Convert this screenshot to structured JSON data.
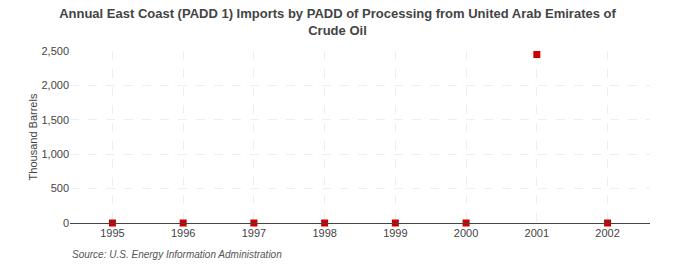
{
  "chart_data": {
    "type": "scatter",
    "title": "Annual East Coast (PADD 1) Imports by PADD of Processing from United Arab Emirates of\nCrude Oil",
    "y_label": "Thousand Barrels",
    "annotations": [
      "Source: U.S. Energy Information Administration"
    ],
    "x": [
      1995,
      1996,
      1997,
      1998,
      1999,
      2000,
      2001,
      2002
    ],
    "values": [
      0,
      0,
      0,
      0,
      0,
      0,
      2449,
      0
    ],
    "color": "#cc0000",
    "marker": "square",
    "xlim": [
      1994.4,
      2002.6
    ],
    "xticks": [
      1995,
      1996,
      1997,
      1998,
      1999,
      2000,
      2001,
      2002
    ],
    "ylim": [
      0,
      2500
    ],
    "yticks": [
      0,
      500,
      {
        "value": 1000,
        "label": "1,000"
      },
      {
        "value": 1500,
        "label": "1,500"
      },
      {
        "value": 2000,
        "label": "2,000"
      },
      {
        "value": 2500,
        "label": "2,500"
      }
    ],
    "grid": true
  }
}
